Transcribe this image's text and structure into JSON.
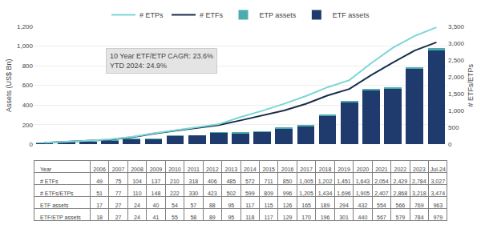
{
  "chart_data": {
    "type": "bar",
    "categories": [
      "2006",
      "2007",
      "2008",
      "2009",
      "2010",
      "2011",
      "2012",
      "2013",
      "2014",
      "2015",
      "2016",
      "2017",
      "2018",
      "2019",
      "2020",
      "2021",
      "2022",
      "2023",
      "Jul-24"
    ],
    "stacked": true,
    "series": [
      {
        "name": "ETF assets",
        "type": "bar",
        "color": "#1F3B6E",
        "values": [
          17,
          27,
          24,
          40,
          54,
          57,
          88,
          95,
          117,
          115,
          126,
          165,
          189,
          294,
          432,
          554,
          566,
          769,
          963
        ]
      },
      {
        "name": "ETP assets",
        "type": "bar",
        "color": "#4AACAC",
        "values": [
          1,
          0,
          0,
          1,
          1,
          1,
          1,
          0,
          1,
          2,
          3,
          5,
          7,
          7,
          8,
          13,
          13,
          15,
          16
        ]
      },
      {
        "name": "# ETFs",
        "type": "line",
        "axis": "y2",
        "color": "#1a2e4a",
        "values": [
          49,
          75,
          104,
          137,
          210,
          318,
          406,
          485,
          572,
          711,
          850,
          1005,
          1202,
          1451,
          1643,
          2054,
          2429,
          2784,
          3027
        ]
      },
      {
        "name": "# ETPs",
        "type": "line",
        "axis": "y2",
        "color": "#7DD6D6",
        "values": [
          51,
          77,
          110,
          148,
          222,
          330,
          423,
          502,
          599,
          809,
          996,
          1205,
          1434,
          1696,
          1905,
          2407,
          2868,
          3218,
          3474
        ]
      }
    ],
    "ylabel": "Assets (US$ Bn)",
    "y2label": "# ETFs/ETPs",
    "ylim": [
      0,
      1200
    ],
    "yticks": [
      0,
      200,
      400,
      600,
      800,
      {
        "value": 1000,
        "label": "1,000"
      },
      {
        "value": 1200,
        "label": "1,200"
      }
    ],
    "y2lim": [
      0,
      3500
    ],
    "y2ticks": [
      0,
      500,
      {
        "value": 1000,
        "label": "1,000"
      },
      {
        "value": 1500,
        "label": "1,500"
      },
      {
        "value": 2000,
        "label": "2,000"
      },
      {
        "value": 2500,
        "label": "2,500"
      },
      {
        "value": 3000,
        "label": "3,000"
      },
      {
        "value": 3500,
        "label": "3,500"
      }
    ],
    "grid": true,
    "legend": "top",
    "tick_labels": "y",
    "annotations": [
      "10 Year ETF/ETP CAGR: 23.6%\nYTD 2024: 24.9%"
    ],
    "table": {
      "row_labels": [
        "Year",
        "# ETFs",
        "# ETFs/ETPs",
        "ETF assets",
        "ETF/ETP assets"
      ],
      "rows": [
        [
          "49",
          "75",
          "104",
          "137",
          "210",
          "318",
          "406",
          "485",
          "572",
          "711",
          "850",
          "1,005",
          "1,202",
          "1,451",
          "1,643",
          "2,054",
          "2,429",
          "2,784",
          "3,027"
        ],
        [
          "51",
          "77",
          "110",
          "148",
          "222",
          "330",
          "423",
          "502",
          "599",
          "809",
          "996",
          "1,205",
          "1,434",
          "1,696",
          "1,905",
          "2,407",
          "2,868",
          "3,218",
          "3,474"
        ],
        [
          "17",
          "27",
          "24",
          "40",
          "54",
          "57",
          "88",
          "95",
          "117",
          "115",
          "126",
          "165",
          "189",
          "294",
          "432",
          "554",
          "566",
          "769",
          "963"
        ],
        [
          "18",
          "27",
          "24",
          "41",
          "55",
          "58",
          "89",
          "95",
          "118",
          "117",
          "129",
          "170",
          "196",
          "301",
          "440",
          "567",
          "579",
          "784",
          "979"
        ]
      ]
    }
  }
}
